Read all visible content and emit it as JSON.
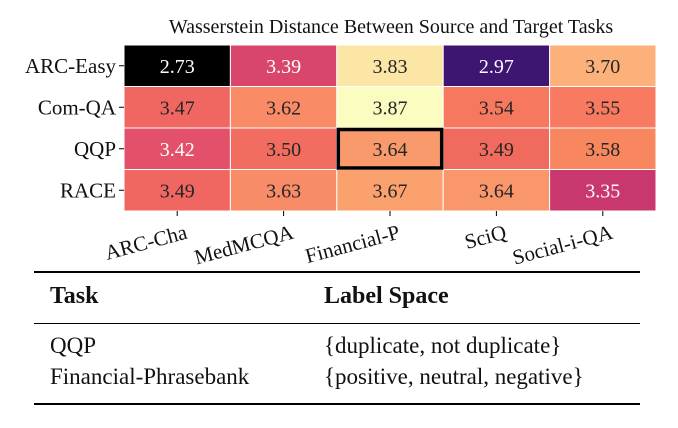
{
  "chart_data": {
    "type": "heatmap",
    "title": "Wasserstein Distance Between Source and Target Tasks",
    "rows": [
      "ARC-Easy",
      "Com-QA",
      "QQP",
      "RACE"
    ],
    "columns": [
      "ARC-Cha",
      "MedMCQA",
      "Financial-P",
      "SciQ",
      "Social-i-QA"
    ],
    "values": [
      [
        2.73,
        3.39,
        3.83,
        2.97,
        3.7
      ],
      [
        3.47,
        3.62,
        3.87,
        3.54,
        3.55
      ],
      [
        3.42,
        3.5,
        3.64,
        3.49,
        3.58
      ],
      [
        3.49,
        3.63,
        3.67,
        3.64,
        3.35
      ]
    ],
    "cell_labels": [
      [
        "2.73",
        "3.39",
        "3.83",
        "2.97",
        "3.70"
      ],
      [
        "3.47",
        "3.62",
        "3.87",
        "3.54",
        "3.55"
      ],
      [
        "3.42",
        "3.50",
        "3.64",
        "3.49",
        "3.58"
      ],
      [
        "3.49",
        "3.63",
        "3.67",
        "3.64",
        "3.35"
      ]
    ],
    "cell_colors": [
      [
        "#000000",
        "#d8466b",
        "#fbe6a5",
        "#3e1570",
        "#fcb07a"
      ],
      [
        "#f06660",
        "#f98c67",
        "#fafcc0",
        "#f6785f",
        "#f87a60"
      ],
      [
        "#e3506a",
        "#f26d5f",
        "#f99a6c",
        "#f06b5e",
        "#f8875f"
      ],
      [
        "#f06660",
        "#f98c68",
        "#fba16e",
        "#f9966a",
        "#c8376e"
      ]
    ],
    "highlight": {
      "row": 2,
      "column": 2
    },
    "colormap": "magma"
  },
  "table": {
    "headers": [
      "Task",
      "Label Space"
    ],
    "rows": [
      [
        "QQP",
        "{duplicate, not duplicate}"
      ],
      [
        "Financial-Phrasebank",
        "{positive, neutral, negative}"
      ]
    ]
  }
}
